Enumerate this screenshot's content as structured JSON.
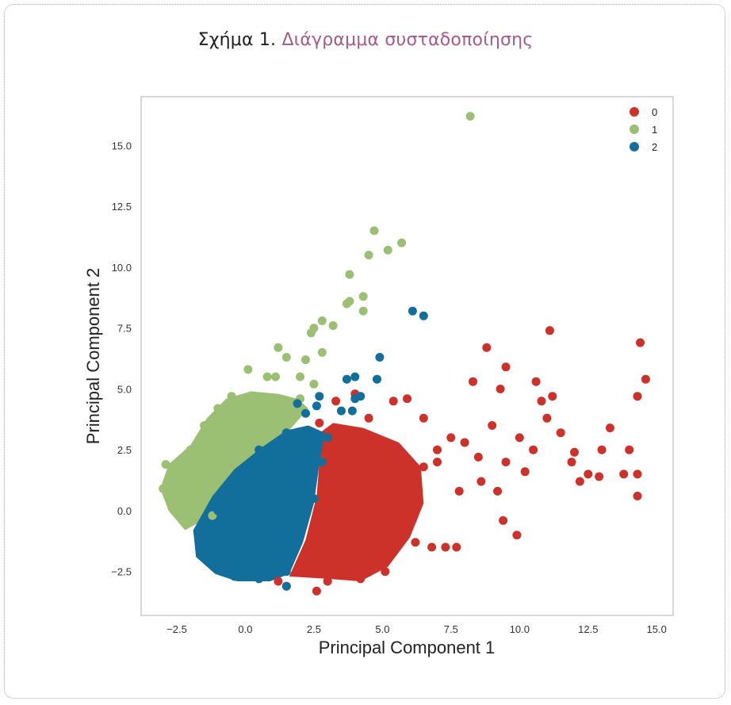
{
  "figure": {
    "caption_number": "Σχήμα 1.",
    "caption_title": "Διάγραμμα συσταδοποίησης"
  },
  "chart_data": {
    "type": "scatter",
    "xlabel": "Principal Component 1",
    "ylabel": "Principal Component 2",
    "xlim": [
      -3.8,
      15.6
    ],
    "ylim": [
      -4.3,
      17.0
    ],
    "xticks": [
      -2.5,
      0.0,
      2.5,
      5.0,
      7.5,
      10.0,
      12.5,
      15.0
    ],
    "yticks": [
      -2.5,
      0.0,
      2.5,
      5.0,
      7.5,
      10.0,
      12.5,
      15.0
    ],
    "grid": false,
    "legend": "top-right",
    "series": [
      {
        "name": "0",
        "color": "#cc3229",
        "points": [
          [
            3.0,
            0.5
          ],
          [
            3.5,
            1.5
          ],
          [
            4.0,
            -0.5
          ],
          [
            4.5,
            2.0
          ],
          [
            5.0,
            1.0
          ],
          [
            5.5,
            -1.0
          ],
          [
            3.2,
            -2.5
          ],
          [
            3.8,
            -2.0
          ],
          [
            4.2,
            -2.8
          ],
          [
            5.2,
            -1.8
          ],
          [
            6.0,
            0.0
          ],
          [
            6.5,
            1.8
          ],
          [
            7.0,
            2.5
          ],
          [
            7.5,
            3.0
          ],
          [
            8.0,
            2.8
          ],
          [
            8.5,
            2.2
          ],
          [
            9.0,
            3.5
          ],
          [
            9.5,
            2.0
          ],
          [
            10.0,
            3.0
          ],
          [
            10.5,
            2.5
          ],
          [
            11.0,
            3.8
          ],
          [
            11.5,
            3.2
          ],
          [
            12.0,
            2.4
          ],
          [
            12.5,
            1.5
          ],
          [
            13.0,
            2.5
          ],
          [
            13.3,
            3.4
          ],
          [
            13.8,
            1.5
          ],
          [
            14.3,
            1.5
          ],
          [
            14.4,
            6.9
          ],
          [
            14.6,
            5.4
          ],
          [
            14.3,
            4.7
          ],
          [
            11.1,
            7.4
          ],
          [
            8.8,
            6.7
          ],
          [
            9.5,
            5.9
          ],
          [
            8.3,
            5.3
          ],
          [
            9.3,
            5.0
          ],
          [
            10.6,
            5.3
          ],
          [
            10.8,
            4.5
          ],
          [
            11.2,
            4.7
          ],
          [
            14.0,
            2.5
          ],
          [
            14.3,
            0.6
          ],
          [
            9.4,
            -0.4
          ],
          [
            9.9,
            -1.0
          ],
          [
            7.3,
            -1.5
          ],
          [
            6.8,
            -1.5
          ],
          [
            7.7,
            -1.5
          ],
          [
            6.2,
            -1.3
          ],
          [
            6.0,
            -0.5
          ],
          [
            5.1,
            -2.5
          ],
          [
            4.5,
            -2.5
          ],
          [
            2.6,
            -3.3
          ],
          [
            1.5,
            -3.1
          ],
          [
            1.2,
            -2.9
          ],
          [
            3.0,
            -2.9
          ],
          [
            5.4,
            4.5
          ],
          [
            5.9,
            4.6
          ],
          [
            4.0,
            4.8
          ],
          [
            4.5,
            3.8
          ],
          [
            6.5,
            3.8
          ],
          [
            7.0,
            2.0
          ],
          [
            7.8,
            0.8
          ],
          [
            8.6,
            1.2
          ],
          [
            9.2,
            0.8
          ],
          [
            10.2,
            1.6
          ],
          [
            12.2,
            1.2
          ],
          [
            12.9,
            1.4
          ],
          [
            11.9,
            2.0
          ],
          [
            3.3,
            4.5
          ],
          [
            2.7,
            3.6
          ]
        ]
      },
      {
        "name": "1",
        "color": "#9bc073",
        "points": [
          [
            8.2,
            16.2
          ],
          [
            4.7,
            11.5
          ],
          [
            5.7,
            11.0
          ],
          [
            5.2,
            10.7
          ],
          [
            4.5,
            10.5
          ],
          [
            3.8,
            9.7
          ],
          [
            4.3,
            8.8
          ],
          [
            3.8,
            8.6
          ],
          [
            3.7,
            8.5
          ],
          [
            4.3,
            8.2
          ],
          [
            2.8,
            7.8
          ],
          [
            2.5,
            7.5
          ],
          [
            3.2,
            7.6
          ],
          [
            2.4,
            7.3
          ],
          [
            2.8,
            6.5
          ],
          [
            1.2,
            6.7
          ],
          [
            1.5,
            6.3
          ],
          [
            2.2,
            6.2
          ],
          [
            2.0,
            5.5
          ],
          [
            2.5,
            5.2
          ],
          [
            0.1,
            5.8
          ],
          [
            0.8,
            5.5
          ],
          [
            1.1,
            5.5
          ],
          [
            -2.9,
            1.9
          ],
          [
            -2.5,
            1.8
          ],
          [
            -3.0,
            0.9
          ],
          [
            -2.0,
            2.5
          ],
          [
            -1.5,
            3.5
          ],
          [
            -1.0,
            4.2
          ],
          [
            -0.5,
            4.7
          ],
          [
            0.2,
            4.5
          ],
          [
            -2.2,
            1.0
          ],
          [
            -1.7,
            0.3
          ],
          [
            -1.0,
            1.5
          ],
          [
            0.5,
            3.0
          ],
          [
            1.0,
            4.0
          ],
          [
            1.5,
            3.5
          ],
          [
            2.0,
            4.6
          ],
          [
            -0.3,
            2.5
          ],
          [
            -2.6,
            0.3
          ],
          [
            -1.2,
            -0.2
          ]
        ]
      },
      {
        "name": "2",
        "color": "#126e9a",
        "points": [
          [
            6.1,
            8.2
          ],
          [
            6.5,
            8.0
          ],
          [
            4.9,
            6.3
          ],
          [
            3.7,
            5.4
          ],
          [
            4.0,
            5.5
          ],
          [
            4.8,
            5.4
          ],
          [
            4.2,
            4.7
          ],
          [
            4.0,
            4.6
          ],
          [
            2.7,
            4.7
          ],
          [
            2.6,
            4.3
          ],
          [
            3.5,
            4.1
          ],
          [
            3.9,
            4.1
          ],
          [
            1.9,
            4.4
          ],
          [
            2.2,
            4.0
          ],
          [
            1.5,
            3.2
          ],
          [
            0.5,
            2.5
          ],
          [
            1.0,
            1.5
          ],
          [
            0.0,
            1.0
          ],
          [
            -1.0,
            0.0
          ],
          [
            -1.5,
            -1.0
          ],
          [
            -0.5,
            -1.5
          ],
          [
            0.5,
            -2.0
          ],
          [
            1.5,
            -2.5
          ],
          [
            2.0,
            -1.0
          ],
          [
            2.5,
            0.5
          ],
          [
            2.8,
            2.0
          ],
          [
            3.0,
            3.0
          ],
          [
            0.5,
            -2.8
          ],
          [
            -0.4,
            -2.7
          ],
          [
            1.5,
            -3.1
          ]
        ]
      }
    ]
  }
}
